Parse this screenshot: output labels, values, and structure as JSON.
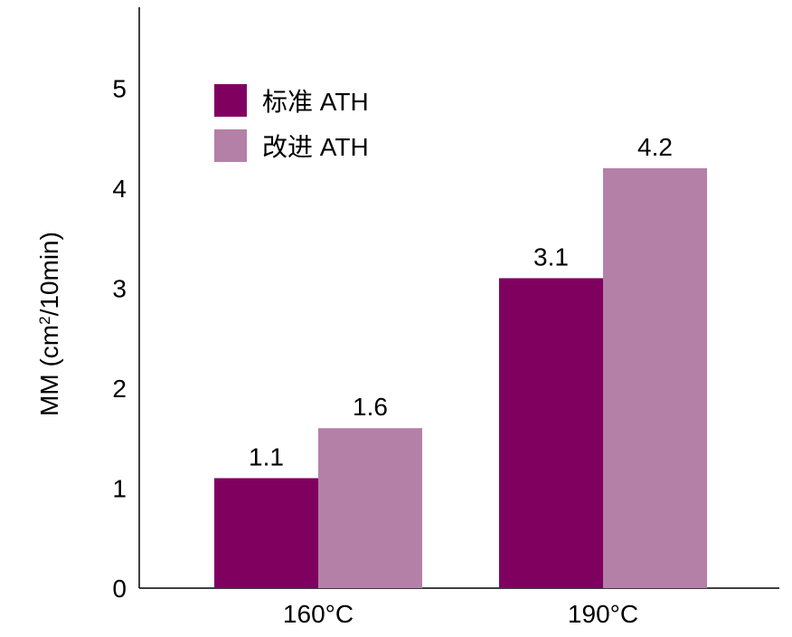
{
  "chart_data": {
    "type": "bar",
    "categories": [
      "160°C",
      "190°C"
    ],
    "series": [
      {
        "name": "标准 ATH",
        "color": "#800060",
        "values": [
          1.1,
          3.1
        ]
      },
      {
        "name": "改进 ATH",
        "color": "#b480a8",
        "values": [
          1.6,
          4.2
        ]
      }
    ],
    "data_labels": [
      [
        "1.1",
        "3.1"
      ],
      [
        "1.6",
        "4.2"
      ]
    ],
    "ylabel_main": "MM (cm",
    "ylabel_sup": "2",
    "ylabel_tail": "/10min)",
    "xlabel": "",
    "ylim": [
      0,
      5.7
    ],
    "yticks": [
      "0",
      "1",
      "2",
      "3",
      "4",
      "5"
    ],
    "grid": false,
    "legend_position": "top-left"
  }
}
